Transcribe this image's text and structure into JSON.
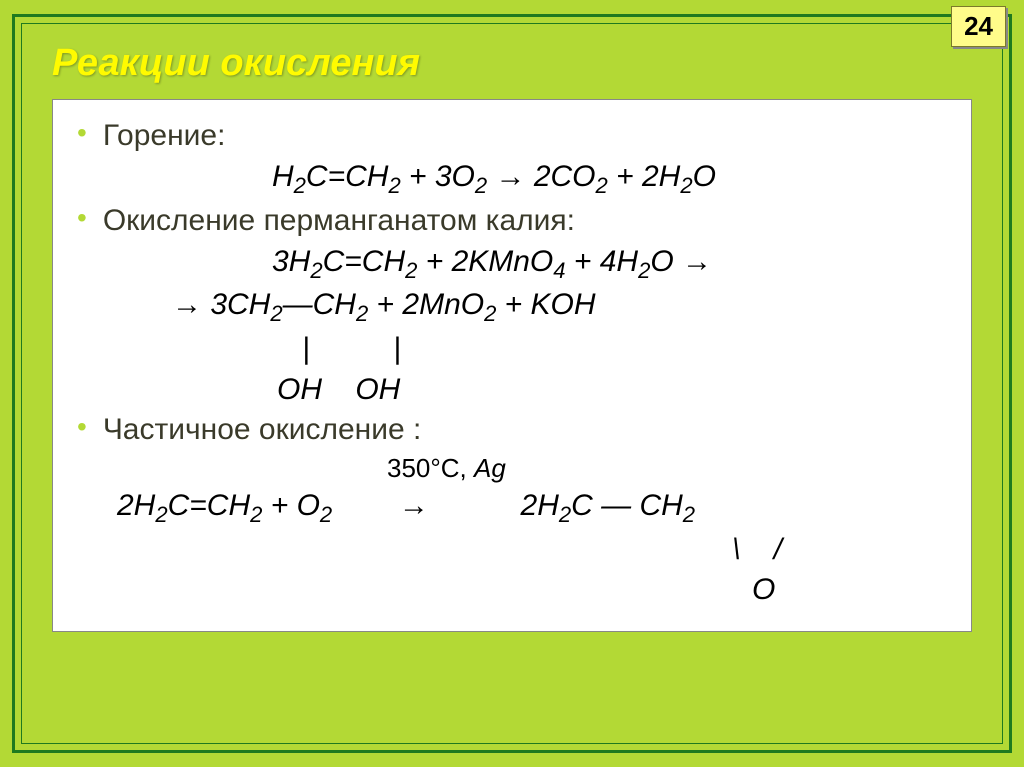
{
  "page_number": "24",
  "title": "Реакции окисления",
  "colors": {
    "slide_bg": "#b3d935",
    "frame_border": "#1f7a1f",
    "title_color": "#fffb00",
    "content_bg": "#ffffff",
    "bullet_color": "#b3d935",
    "text_color": "#3a3a2a",
    "badge_bg": "#fffc8a"
  },
  "typography": {
    "title_fontsize": 38,
    "body_fontsize": 30,
    "sub_fontsize": 22
  },
  "sections": [
    {
      "label": "Горение:",
      "equations": [
        {
          "indent": 195,
          "parts": [
            "H",
            "_2",
            "C=CH",
            "_2",
            " + 3O",
            "_2",
            " → 2CO",
            "_2",
            " + 2H",
            "_2",
            "O"
          ]
        }
      ]
    },
    {
      "label": "Окисление перманганатом калия:",
      "equations": [
        {
          "indent": 195,
          "parts": [
            "3H",
            "_2",
            "C=CH",
            "_2",
            " + 2KMnO",
            "_4",
            " + 4H",
            "_2",
            "O →"
          ]
        },
        {
          "indent": 95,
          "parts": [
            "→ 3CH",
            "_2",
            "—CH",
            "_2",
            " + 2MnO",
            "_2",
            " + KOH"
          ]
        },
        {
          "indent": 225,
          "parts": [
            "|          |"
          ]
        },
        {
          "indent": 200,
          "parts": [
            "OH    OH"
          ]
        }
      ]
    },
    {
      "label": "Частичное окисление :",
      "equations": [
        {
          "indent": 310,
          "condition": true,
          "parts": [
            "350°С, "
          ],
          "tail": "Ag"
        },
        {
          "indent": 40,
          "parts": [
            "2H",
            "_2",
            "C=CH",
            "_2",
            " + O",
            "_2",
            "        →           2H",
            "_2",
            "C — CH",
            "_2"
          ]
        },
        {
          "indent": 655,
          "parts": [
            "\\    /"
          ]
        },
        {
          "indent": 675,
          "parts": [
            "O"
          ]
        }
      ]
    }
  ]
}
